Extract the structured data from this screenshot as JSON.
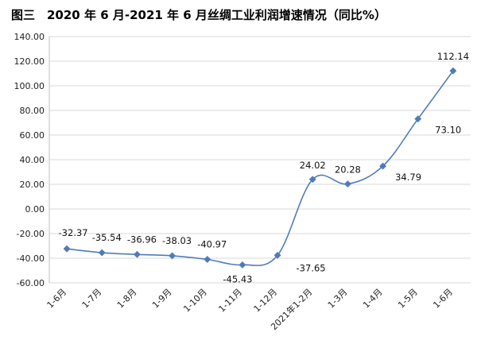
{
  "chart_data": {
    "type": "line",
    "title": "图三　2020 年 6 月-2021 年 6 月丝绸工业利润增速情况（同比%）",
    "xlabel": "",
    "ylabel": "",
    "categories": [
      "1-6月",
      "1-7月",
      "1-8月",
      "1-9月",
      "1-10月",
      "1-11月",
      "1-12月",
      "2021年1-2月",
      "1-3月",
      "1-4月",
      "1-5月",
      "1-6月"
    ],
    "series": [
      {
        "values": [
          -32.37,
          -35.54,
          -36.96,
          -38.03,
          -40.97,
          -45.43,
          -37.65,
          24.02,
          20.28,
          34.79,
          73.1,
          112.14
        ]
      }
    ],
    "data_labels": [
      "-32.37",
      "-35.54",
      "-36.96",
      "-38.03",
      "-40.97",
      "-45.43",
      "-37.65",
      "24.02",
      "20.28",
      "34.79",
      "73.10",
      "112.14"
    ],
    "ylim": [
      -60,
      140
    ],
    "yticks": [
      -60,
      -40,
      -20,
      0,
      20,
      40,
      60,
      80,
      100,
      120,
      140
    ],
    "ytick_labels": [
      "-60.00",
      "-40.00",
      "-20.00",
      "0.00",
      "20.00",
      "40.00",
      "60.00",
      "80.00",
      "100.00",
      "120.00",
      "140.00"
    ],
    "grid": true,
    "legend": "none",
    "line_color": "#4f7cb8",
    "marker": "diamond",
    "smooth": true
  }
}
